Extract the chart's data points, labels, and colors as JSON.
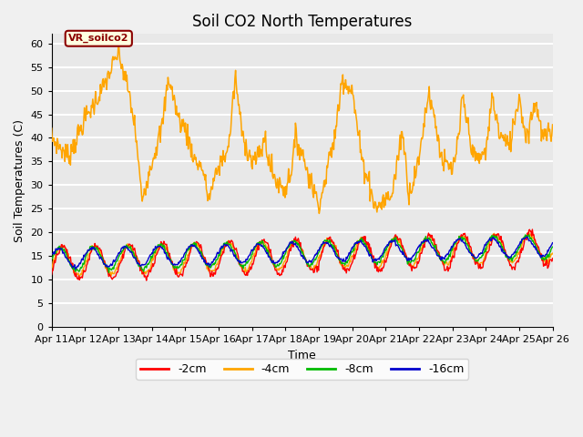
{
  "title": "Soil CO2 North Temperatures",
  "xlabel": "Time",
  "ylabel": "Soil Temperatures (C)",
  "ylim": [
    0,
    62
  ],
  "yticks": [
    0,
    5,
    10,
    15,
    20,
    25,
    30,
    35,
    40,
    45,
    50,
    55,
    60
  ],
  "x_labels": [
    "Apr 11",
    "Apr 12",
    "Apr 13",
    "Apr 14",
    "Apr 15",
    "Apr 16",
    "Apr 17",
    "Apr 18",
    "Apr 19",
    "Apr 20",
    "Apr 21",
    "Apr 22",
    "Apr 23",
    "Apr 24",
    "Apr 25",
    "Apr 26"
  ],
  "annotation_label": "VR_soilco2",
  "annotation_color_bg": "#ffffe0",
  "annotation_color_border": "#8b0000",
  "annotation_color_text": "#8b0000",
  "line_colors": {
    "vr": "#FFA500",
    "2cm": "#ff0000",
    "8cm": "#00bb00",
    "16cm": "#0000cc"
  },
  "legend_entries": [
    "-2cm",
    "-4cm",
    "-8cm",
    "-16cm"
  ],
  "legend_colors": [
    "#ff0000",
    "#FFA500",
    "#00bb00",
    "#0000cc"
  ],
  "bg_color": "#e8e8e8",
  "fig_bg_color": "#f0f0f0",
  "title_fontsize": 12,
  "axis_fontsize": 9,
  "tick_fontsize": 8
}
